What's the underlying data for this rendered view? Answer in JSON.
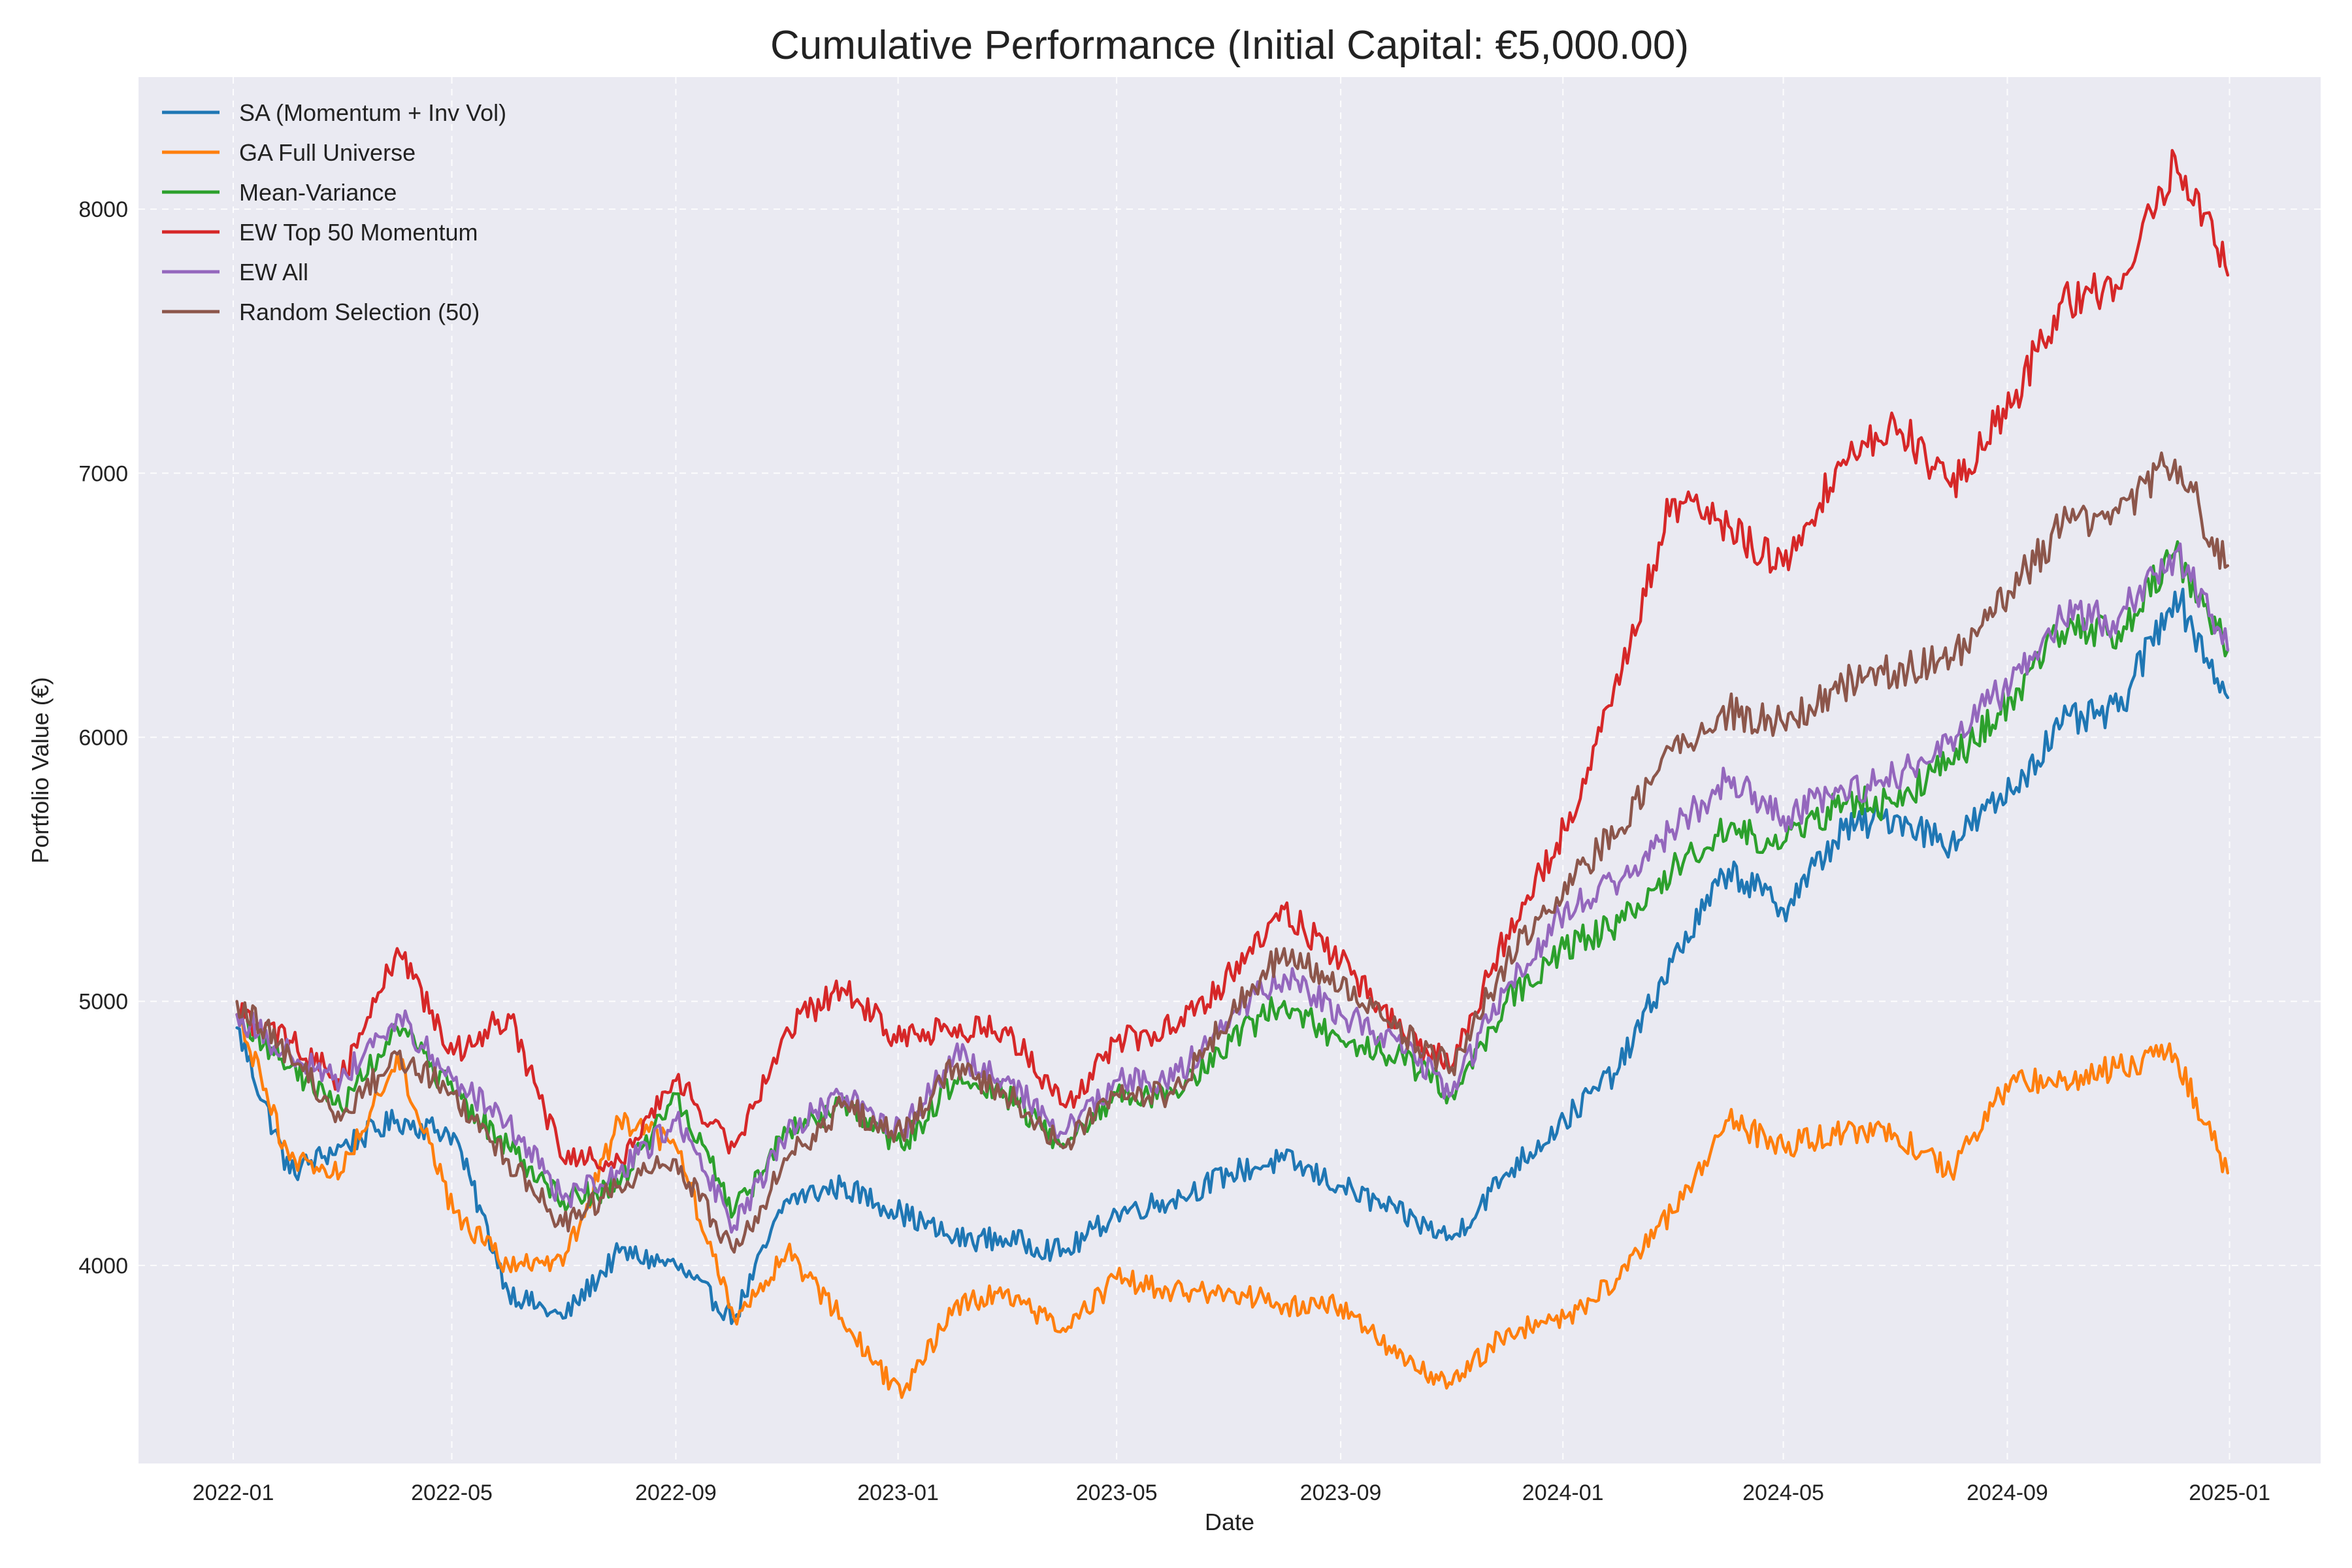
{
  "chart_data": {
    "type": "line",
    "title": "Cumulative Performance (Initial Capital: €5,000.00)",
    "xlabel": "Date",
    "ylabel": "Portfolio Value (€)",
    "x_ticks": [
      "2022-01",
      "2022-05",
      "2022-09",
      "2023-01",
      "2023-05",
      "2023-09",
      "2024-01",
      "2024-05",
      "2024-09",
      "2025-01"
    ],
    "y_ticks": [
      4000,
      5000,
      6000,
      7000,
      8000
    ],
    "xlim": [
      "2021-11-10",
      "2025-02-20"
    ],
    "ylim": [
      3250,
      8500
    ],
    "grid": true,
    "legend_position": "top-left",
    "x": [
      "2022-01-03",
      "2022-02-01",
      "2022-03-01",
      "2022-04-01",
      "2022-05-02",
      "2022-06-01",
      "2022-07-01",
      "2022-08-01",
      "2022-09-01",
      "2022-10-03",
      "2022-11-01",
      "2022-12-01",
      "2023-01-03",
      "2023-02-01",
      "2023-03-01",
      "2023-04-03",
      "2023-05-01",
      "2023-06-01",
      "2023-07-03",
      "2023-08-01",
      "2023-09-01",
      "2023-10-02",
      "2023-11-01",
      "2023-12-01",
      "2024-01-02",
      "2024-02-01",
      "2024-03-01",
      "2024-04-01",
      "2024-05-01",
      "2024-06-03",
      "2024-07-01",
      "2024-08-01",
      "2024-09-03",
      "2024-10-01",
      "2024-11-01",
      "2024-12-02",
      "2024-12-31"
    ],
    "series": [
      {
        "name": "SA (Momentum + Inv Vol)",
        "color": "#1f77b4",
        "values": [
          4900,
          4350,
          4450,
          4550,
          4500,
          3900,
          3800,
          4050,
          4000,
          3800,
          4250,
          4300,
          4200,
          4100,
          4100,
          4050,
          4200,
          4250,
          4350,
          4400,
          4300,
          4200,
          4100,
          4350,
          4550,
          4750,
          5150,
          5500,
          5350,
          5650,
          5700,
          5600,
          5800,
          6050,
          6100,
          6550,
          6150
        ]
      },
      {
        "name": "GA Full Universe",
        "color": "#ff7f0e",
        "values": [
          4950,
          4400,
          4350,
          4800,
          4200,
          4000,
          4000,
          4550,
          4450,
          3800,
          4050,
          3800,
          3500,
          3850,
          3900,
          3750,
          3950,
          3900,
          3900,
          3850,
          3850,
          3650,
          3550,
          3750,
          3800,
          3950,
          4200,
          4550,
          4450,
          4500,
          4500,
          4350,
          4700,
          4700,
          4750,
          4800,
          4350
        ]
      },
      {
        "name": "Mean-Variance",
        "color": "#2ca02c",
        "values": [
          4950,
          4750,
          4600,
          4900,
          4650,
          4450,
          4250,
          4300,
          4650,
          4200,
          4500,
          4600,
          4450,
          4700,
          4650,
          4450,
          4650,
          4650,
          4850,
          5000,
          4850,
          4800,
          4650,
          5000,
          5200,
          5300,
          5500,
          5650,
          5600,
          5750,
          5750,
          5900,
          6150,
          6400,
          6400,
          6700,
          6330
        ]
      },
      {
        "name": "EW Top 50 Momentum",
        "color": "#d62728",
        "values": [
          4950,
          4850,
          4700,
          5200,
          4800,
          4950,
          4400,
          4400,
          4700,
          4450,
          4900,
          5050,
          4850,
          4900,
          4900,
          4600,
          4850,
          4900,
          5100,
          5350,
          5150,
          4900,
          4750,
          5250,
          5650,
          6200,
          6900,
          6800,
          6650,
          7050,
          7200,
          6950,
          7250,
          7650,
          7700,
          8200,
          7750
        ]
      },
      {
        "name": "EW All",
        "color": "#9467bd",
        "values": [
          4950,
          4800,
          4700,
          4950,
          4700,
          4550,
          4250,
          4350,
          4550,
          4150,
          4500,
          4650,
          4500,
          4800,
          4700,
          4500,
          4700,
          4700,
          4950,
          5100,
          4950,
          4850,
          4650,
          5050,
          5350,
          5450,
          5650,
          5850,
          5700,
          5800,
          5850,
          6000,
          6200,
          6450,
          6450,
          6700,
          6330
        ]
      },
      {
        "name": "Random Selection (50)",
        "color": "#8c564b",
        "values": [
          5000,
          4800,
          4550,
          4800,
          4650,
          4400,
          4150,
          4300,
          4400,
          4050,
          4400,
          4600,
          4500,
          4750,
          4650,
          4450,
          4650,
          4650,
          4950,
          5200,
          5050,
          4900,
          4750,
          5150,
          5450,
          5650,
          5950,
          6100,
          6050,
          6200,
          6250,
          6300,
          6550,
          6800,
          6850,
          7050,
          6650
        ]
      }
    ]
  }
}
